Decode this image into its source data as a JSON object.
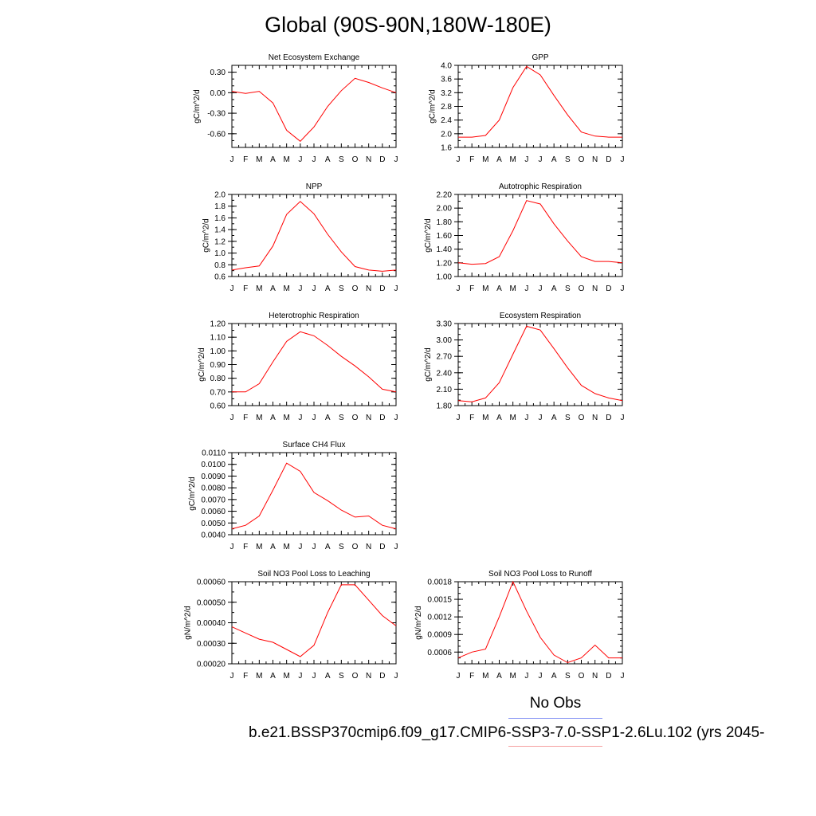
{
  "title": "Global (90S-90N,180W-180E)",
  "legend": {
    "obs_label": "No Obs",
    "case_label": "b.e21.BSSP370cmip6.f09_g17.CMIP6-SSP3-7.0-SSP1-2.6Lu.102 (yrs 2045-",
    "obs_color": "#8f9bf5",
    "case_color": "#ff0000"
  },
  "line_color": "#ff0000",
  "chart_data": [
    {
      "type": "line",
      "title": "Net Ecosystem Exchange",
      "ylabel": "gC/m^2/d",
      "categories": [
        "J",
        "F",
        "M",
        "A",
        "M",
        "J",
        "J",
        "A",
        "S",
        "O",
        "N",
        "D",
        "J"
      ],
      "ylim": [
        -0.8,
        0.4
      ],
      "yticks": [
        0.3,
        0.0,
        -0.3,
        -0.6
      ],
      "yticklabels": [
        "0.30",
        "0.00",
        "-0.30",
        "-0.60"
      ],
      "yminor": 0.1,
      "values": [
        0.02,
        -0.01,
        0.02,
        -0.15,
        -0.55,
        -0.71,
        -0.5,
        -0.2,
        0.03,
        0.21,
        0.15,
        0.07,
        0.0
      ]
    },
    {
      "type": "line",
      "title": "GPP",
      "ylabel": "gC/m^2/d",
      "categories": [
        "J",
        "F",
        "M",
        "A",
        "M",
        "J",
        "J",
        "A",
        "S",
        "O",
        "N",
        "D",
        "J"
      ],
      "ylim": [
        1.6,
        4.0
      ],
      "yticks": [
        1.6,
        2.0,
        2.4,
        2.8,
        3.2,
        3.6,
        4.0
      ],
      "yticklabels": [
        "1.6",
        "2.0",
        "2.4",
        "2.8",
        "3.2",
        "3.6",
        "4.0"
      ],
      "yminor": 0.2,
      "values": [
        1.9,
        1.9,
        1.95,
        2.4,
        3.35,
        3.97,
        3.72,
        3.12,
        2.55,
        2.05,
        1.93,
        1.9,
        1.9
      ]
    },
    {
      "type": "line",
      "title": "NPP",
      "ylabel": "gC/m^2/d",
      "categories": [
        "J",
        "F",
        "M",
        "A",
        "M",
        "J",
        "J",
        "A",
        "S",
        "O",
        "N",
        "D",
        "J"
      ],
      "ylim": [
        0.6,
        2.0
      ],
      "yticks": [
        0.6,
        0.8,
        1.0,
        1.2,
        1.4,
        1.6,
        1.8,
        2.0
      ],
      "yticklabels": [
        "0.6",
        "0.8",
        "1.0",
        "1.2",
        "1.4",
        "1.6",
        "1.8",
        "2.0"
      ],
      "yminor": 0.1,
      "values": [
        0.71,
        0.75,
        0.78,
        1.12,
        1.66,
        1.88,
        1.67,
        1.32,
        1.02,
        0.77,
        0.71,
        0.69,
        0.71
      ]
    },
    {
      "type": "line",
      "title": "Autotrophic Respiration",
      "ylabel": "gC/m^2/d",
      "categories": [
        "J",
        "F",
        "M",
        "A",
        "M",
        "J",
        "J",
        "A",
        "S",
        "O",
        "N",
        "D",
        "J"
      ],
      "ylim": [
        1.0,
        2.2
      ],
      "yticks": [
        1.0,
        1.2,
        1.4,
        1.6,
        1.8,
        2.0,
        2.2
      ],
      "yticklabels": [
        "1.00",
        "1.20",
        "1.40",
        "1.60",
        "1.80",
        "2.00",
        "2.20"
      ],
      "yminor": 0.1,
      "values": [
        1.2,
        1.18,
        1.19,
        1.29,
        1.67,
        2.11,
        2.06,
        1.77,
        1.52,
        1.29,
        1.22,
        1.22,
        1.2
      ]
    },
    {
      "type": "line",
      "title": "Heterotrophic Respiration",
      "ylabel": "gC/m^2/d",
      "categories": [
        "J",
        "F",
        "M",
        "A",
        "M",
        "J",
        "J",
        "A",
        "S",
        "O",
        "N",
        "D",
        "J"
      ],
      "ylim": [
        0.6,
        1.2
      ],
      "yticks": [
        0.6,
        0.7,
        0.8,
        0.9,
        1.0,
        1.1,
        1.2
      ],
      "yticklabels": [
        "0.60",
        "0.70",
        "0.80",
        "0.90",
        "1.00",
        "1.10",
        "1.20"
      ],
      "yminor": 0.05,
      "values": [
        0.7,
        0.7,
        0.76,
        0.92,
        1.07,
        1.14,
        1.11,
        1.04,
        0.96,
        0.89,
        0.81,
        0.72,
        0.7
      ]
    },
    {
      "type": "line",
      "title": "Ecosystem Respiration",
      "ylabel": "gC/m^2/d",
      "categories": [
        "J",
        "F",
        "M",
        "A",
        "M",
        "J",
        "J",
        "A",
        "S",
        "O",
        "N",
        "D",
        "J"
      ],
      "ylim": [
        1.8,
        3.3
      ],
      "yticks": [
        1.8,
        2.1,
        2.4,
        2.7,
        3.0,
        3.3
      ],
      "yticklabels": [
        "1.80",
        "2.10",
        "2.40",
        "2.70",
        "3.00",
        "3.30"
      ],
      "yminor": 0.1,
      "values": [
        1.89,
        1.87,
        1.94,
        2.22,
        2.74,
        3.25,
        3.18,
        2.84,
        2.49,
        2.17,
        2.02,
        1.94,
        1.89
      ]
    },
    {
      "type": "line",
      "title": "Surface CH4 Flux",
      "ylabel": "gC/m^2/d",
      "categories": [
        "J",
        "F",
        "M",
        "A",
        "M",
        "J",
        "J",
        "A",
        "S",
        "O",
        "N",
        "D",
        "J"
      ],
      "ylim": [
        0.004,
        0.011
      ],
      "yticks": [
        0.004,
        0.005,
        0.006,
        0.007,
        0.008,
        0.009,
        0.01,
        0.011
      ],
      "yticklabels": [
        "0.0040",
        "0.0050",
        "0.0060",
        "0.0070",
        "0.0080",
        "0.0090",
        "0.0100",
        "0.0110"
      ],
      "yminor": 0.0005,
      "values": [
        0.0045,
        0.0048,
        0.0056,
        0.0078,
        0.0101,
        0.0094,
        0.0076,
        0.0069,
        0.0061,
        0.0055,
        0.0056,
        0.0048,
        0.0045
      ]
    },
    {
      "type": "line",
      "title": "Soil NO3 Pool Loss to Leaching",
      "ylabel": "gN/m^2/d",
      "categories": [
        "J",
        "F",
        "M",
        "A",
        "M",
        "J",
        "J",
        "A",
        "S",
        "O",
        "N",
        "D",
        "J"
      ],
      "ylim": [
        0.0002,
        0.0006
      ],
      "yticks": [
        0.0002,
        0.0003,
        0.0004,
        0.0005,
        0.0006
      ],
      "yticklabels": [
        "0.00020",
        "0.00030",
        "0.00040",
        "0.00050",
        "0.00060"
      ],
      "yminor": 5e-05,
      "values": [
        0.00038,
        0.00035,
        0.00032,
        0.000305,
        0.00027,
        0.000235,
        0.00029,
        0.00045,
        0.000585,
        0.000585,
        0.00051,
        0.000435,
        0.000385
      ]
    },
    {
      "type": "line",
      "title": "Soil NO3 Pool Loss to Runoff",
      "ylabel": "gN/m^2/d",
      "categories": [
        "J",
        "F",
        "M",
        "A",
        "M",
        "J",
        "J",
        "A",
        "S",
        "O",
        "N",
        "D",
        "J"
      ],
      "ylim": [
        0.0004,
        0.0018
      ],
      "yticks": [
        0.0006,
        0.0009,
        0.0012,
        0.0015,
        0.0018
      ],
      "yticklabels": [
        "0.0006",
        "0.0009",
        "0.0012",
        "0.0015",
        "0.0018"
      ],
      "yminor": 0.0001,
      "values": [
        0.0005,
        0.0006,
        0.00065,
        0.0012,
        0.0018,
        0.0013,
        0.00085,
        0.00055,
        0.00042,
        0.0005,
        0.00072,
        0.0005,
        0.0005
      ]
    }
  ]
}
